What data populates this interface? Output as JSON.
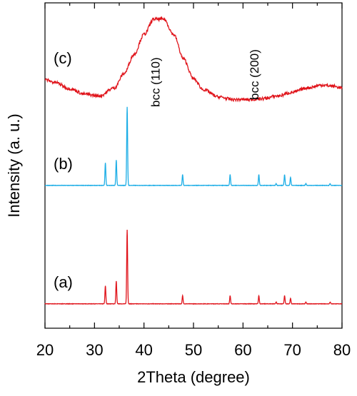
{
  "chart_data": {
    "type": "line",
    "title": "",
    "xlabel": "2Theta (degree)",
    "ylabel": "Intensity (a. u.)",
    "xlim": [
      20,
      80
    ],
    "x_ticks": [
      "20",
      "30",
      "40",
      "50",
      "60",
      "70",
      "80"
    ],
    "y_ticks_labeled": false,
    "grid": false,
    "legend": "none",
    "series": [
      {
        "name": "(a)",
        "color": "#e0141b",
        "baseline": 0.07,
        "peaks": [
          {
            "x": 32.2,
            "h": 0.2
          },
          {
            "x": 34.4,
            "h": 0.25
          },
          {
            "x": 36.6,
            "h": 0.82
          },
          {
            "x": 47.8,
            "h": 0.09
          },
          {
            "x": 57.4,
            "h": 0.09
          },
          {
            "x": 63.2,
            "h": 0.09
          },
          {
            "x": 66.7,
            "h": 0.02
          },
          {
            "x": 68.4,
            "h": 0.09
          },
          {
            "x": 69.6,
            "h": 0.06
          },
          {
            "x": 72.7,
            "h": 0.02
          },
          {
            "x": 77.6,
            "h": 0.02
          }
        ]
      },
      {
        "name": "(b)",
        "color": "#1eaee6",
        "baseline": 1.38,
        "peaks": [
          {
            "x": 32.2,
            "h": 0.25
          },
          {
            "x": 34.4,
            "h": 0.28
          },
          {
            "x": 36.6,
            "h": 0.87
          },
          {
            "x": 47.8,
            "h": 0.12
          },
          {
            "x": 57.4,
            "h": 0.12
          },
          {
            "x": 63.2,
            "h": 0.12
          },
          {
            "x": 66.7,
            "h": 0.02
          },
          {
            "x": 68.4,
            "h": 0.12
          },
          {
            "x": 69.6,
            "h": 0.09
          },
          {
            "x": 72.7,
            "h": 0.02
          },
          {
            "x": 77.6,
            "h": 0.02
          }
        ]
      },
      {
        "name": "(c)",
        "color": "#e0141b",
        "profile": [
          [
            20,
            2.55
          ],
          [
            22,
            2.52
          ],
          [
            25,
            2.45
          ],
          [
            28,
            2.39
          ],
          [
            31,
            2.37
          ],
          [
            34,
            2.46
          ],
          [
            36,
            2.62
          ],
          [
            38,
            2.83
          ],
          [
            40,
            3.05
          ],
          [
            42,
            3.22
          ],
          [
            44,
            3.22
          ],
          [
            46,
            3.05
          ],
          [
            48,
            2.78
          ],
          [
            50,
            2.56
          ],
          [
            52,
            2.44
          ],
          [
            55,
            2.36
          ],
          [
            58,
            2.33
          ],
          [
            61,
            2.33
          ],
          [
            64,
            2.34
          ],
          [
            67,
            2.37
          ],
          [
            70,
            2.41
          ],
          [
            73,
            2.46
          ],
          [
            76,
            2.49
          ],
          [
            78,
            2.48
          ],
          [
            80,
            2.46
          ]
        ]
      }
    ],
    "annotations": [
      {
        "text": "bcc (110)",
        "x": 44.0
      },
      {
        "text": "bcc (200)",
        "x": 64.0
      }
    ]
  }
}
